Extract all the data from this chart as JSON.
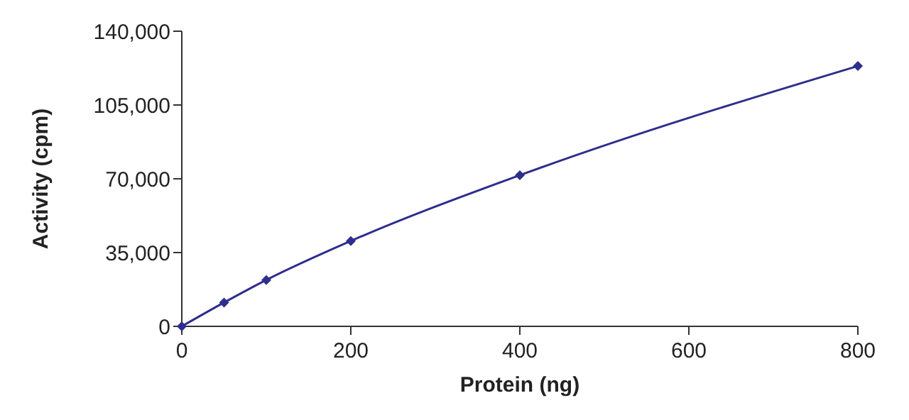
{
  "chart_data": {
    "type": "line",
    "xlabel": "Protein (ng)",
    "ylabel": "Activity (cpm)",
    "x": [
      0,
      50,
      100,
      200,
      400,
      800
    ],
    "series": [
      {
        "color": "#2e2e8c",
        "values": [
          0,
          11300,
          22000,
          40500,
          71700,
          123500
        ]
      }
    ],
    "xlim": [
      0,
      800
    ],
    "xticks": [
      0,
      200,
      400,
      600,
      800
    ],
    "ylim": [
      0,
      140000
    ],
    "yticks": [
      {
        "value": 0,
        "label": "0"
      },
      {
        "value": 35000,
        "label": "35,000"
      },
      {
        "value": 70000,
        "label": "70,000"
      },
      {
        "value": 105000,
        "label": "105,000"
      },
      {
        "value": 140000,
        "label": "140,000"
      }
    ],
    "grid": false,
    "legend": false,
    "marker": "diamond",
    "line_style": "solid"
  }
}
